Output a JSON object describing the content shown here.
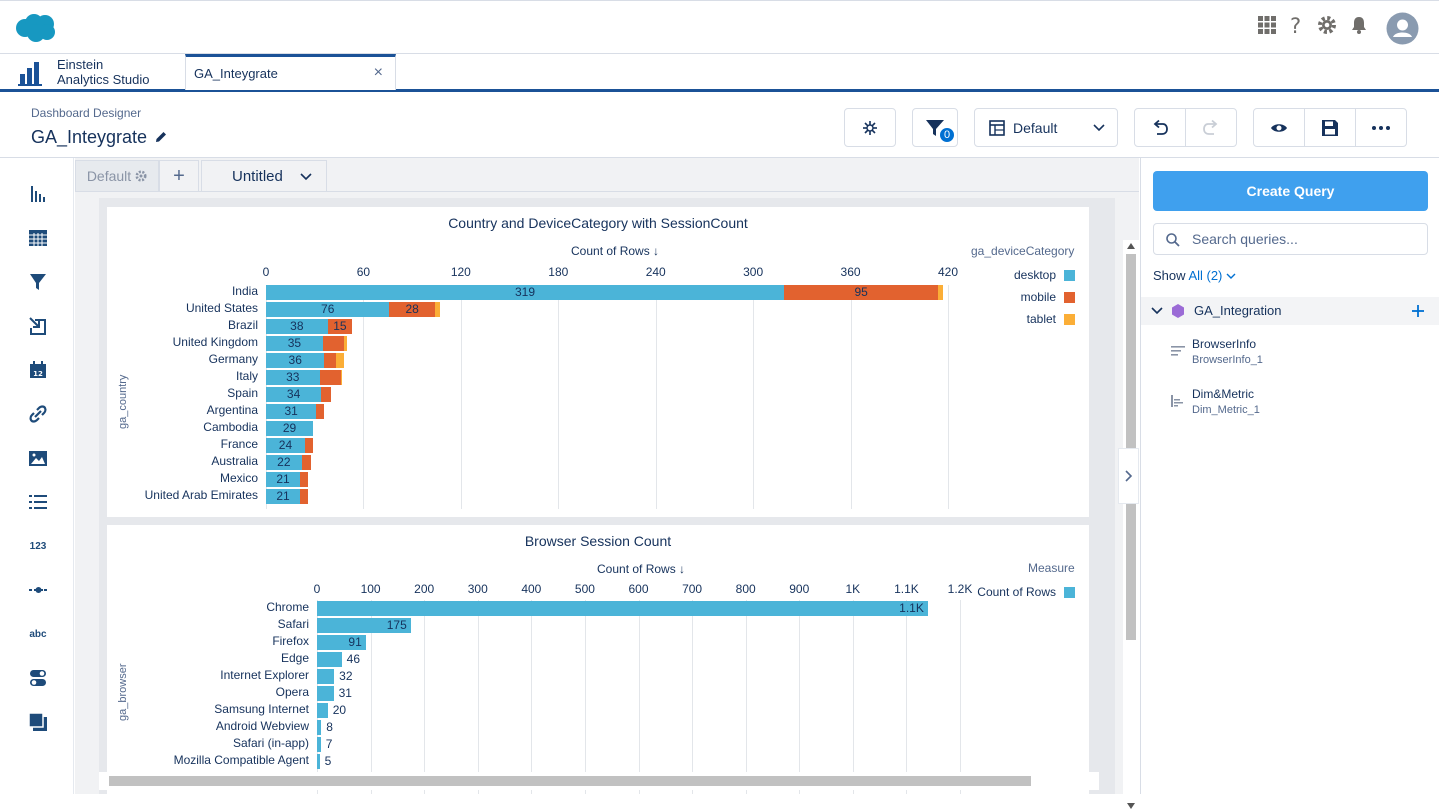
{
  "app": {
    "name_line1": "Einstein",
    "name_line2": "Analytics Studio"
  },
  "tabs": [
    {
      "label": "GA_Inteygrate",
      "close": "×"
    }
  ],
  "header": {
    "breadcrumb": "Dashboard Designer",
    "title": "GA_Inteygrate",
    "filter_count": "0",
    "layout_label": "Default"
  },
  "pages": {
    "default_label": "Default",
    "add_label": "+",
    "untitled_label": "Untitled"
  },
  "left_rail": {
    "number_label": "123",
    "text_label": "abc"
  },
  "chart1": {
    "title": "Country and DeviceCategory with SessionCount",
    "measure_label": "Count of Rows ↓"
  },
  "chart2": {
    "title": "Browser Session Count",
    "measure_label": "Count of Rows ↓"
  },
  "chart_data": [
    {
      "type": "bar",
      "title": "Country and DeviceCategory with SessionCount",
      "xlabel": "Count of Rows ↓",
      "ylabel": "ga_country",
      "xlim": [
        0,
        420
      ],
      "ticks": [
        "0",
        "60",
        "120",
        "180",
        "240",
        "300",
        "360",
        "420"
      ],
      "tick_values": [
        0,
        60,
        120,
        180,
        240,
        300,
        360,
        420
      ],
      "stacked": true,
      "legend_title": "ga_deviceCategory",
      "legend_position": "right",
      "categories": [
        "India",
        "United States",
        "Brazil",
        "United Kingdom",
        "Germany",
        "Italy",
        "Spain",
        "Argentina",
        "Cambodia",
        "France",
        "Australia",
        "Mexico",
        "United Arab Emirates"
      ],
      "series": [
        {
          "name": "desktop",
          "color": "#4bb4d8",
          "values": [
            319,
            76,
            38,
            35,
            36,
            33,
            34,
            31,
            29,
            24,
            22,
            21,
            21
          ]
        },
        {
          "name": "mobile",
          "color": "#e2622f",
          "values": [
            95,
            28,
            15,
            13,
            7,
            13,
            6,
            5,
            0,
            5,
            6,
            5,
            5
          ]
        },
        {
          "name": "tablet",
          "color": "#fbae37",
          "values": [
            3,
            3,
            0,
            2,
            5,
            1,
            0,
            0,
            0,
            0,
            0,
            0,
            0
          ]
        }
      ],
      "labels": [
        [
          "319",
          "95"
        ],
        [
          "76",
          "28"
        ],
        [
          "38",
          "15"
        ],
        [
          "35"
        ],
        [
          "36"
        ],
        [
          "33"
        ],
        [
          "34"
        ],
        [
          "31"
        ],
        [
          "29"
        ],
        [
          "24"
        ],
        [
          "22"
        ],
        [
          "21"
        ],
        [
          "21"
        ]
      ]
    },
    {
      "type": "bar",
      "title": "Browser Session Count",
      "xlabel": "Count of Rows ↓",
      "ylabel": "ga_browser",
      "xlim": [
        0,
        1200
      ],
      "ticks": [
        "0",
        "100",
        "200",
        "300",
        "400",
        "500",
        "600",
        "700",
        "800",
        "900",
        "1K",
        "1.1K",
        "1.2K"
      ],
      "tick_values": [
        0,
        100,
        200,
        300,
        400,
        500,
        600,
        700,
        800,
        900,
        1000,
        1100,
        1200
      ],
      "legend_title": "Measure",
      "legend_position": "right",
      "categories": [
        "Chrome",
        "Safari",
        "Firefox",
        "Edge",
        "Internet Explorer",
        "Opera",
        "Samsung Internet",
        "Android Webview",
        "Safari (in-app)",
        "Mozilla Compatible Agent"
      ],
      "series": [
        {
          "name": "Count of Rows",
          "color": "#4bb4d8",
          "values": [
            1140,
            175,
            91,
            46,
            32,
            31,
            20,
            8,
            7,
            5
          ]
        }
      ],
      "labels": [
        "1.1K",
        "175",
        "91",
        "46",
        "32",
        "31",
        "20",
        "8",
        "7",
        "5"
      ]
    }
  ],
  "right_panel": {
    "create_button": "Create Query",
    "search_placeholder": "Search queries...",
    "show_label": "Show",
    "show_value": "All (2)",
    "group_name": "GA_Integration",
    "queries": [
      {
        "title": "BrowserInfo",
        "subtitle": "BrowserInfo_1"
      },
      {
        "title": "Dim&Metric",
        "subtitle": "Dim_Metric_1"
      }
    ]
  }
}
